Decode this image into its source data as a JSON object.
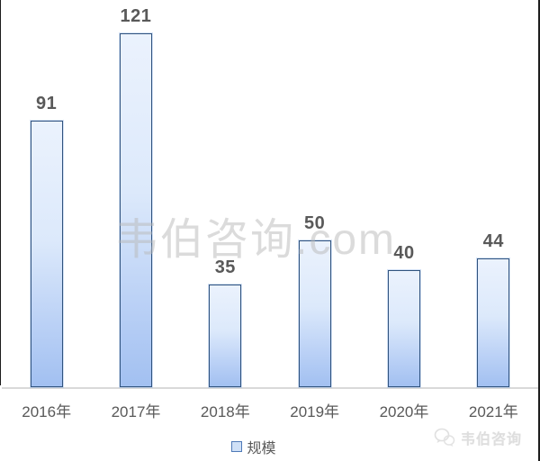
{
  "chart_data": {
    "type": "bar",
    "title": "",
    "categories": [
      "2016年",
      "2017年",
      "2018年",
      "2019年",
      "2020年",
      "2021年"
    ],
    "series": [
      {
        "name": "规模",
        "values": [
          91,
          121,
          35,
          50,
          40,
          44
        ]
      }
    ],
    "xlabel": "",
    "ylabel": "",
    "ylim": [
      0,
      130
    ],
    "grid": false,
    "legend_position": "bottom",
    "data_labels": true,
    "colors": {
      "bar_fill_top": "#EBF2FD",
      "bar_fill_bottom": "#A2C0F1",
      "bar_border": "#30537E",
      "text": "#595959",
      "axis_line": "#D9D9D9"
    }
  },
  "legend": {
    "items": [
      {
        "label": "规模"
      }
    ]
  },
  "watermarks": {
    "center_text": "韦伯咨询.com",
    "bottom_right_text": "韦伯咨询"
  }
}
